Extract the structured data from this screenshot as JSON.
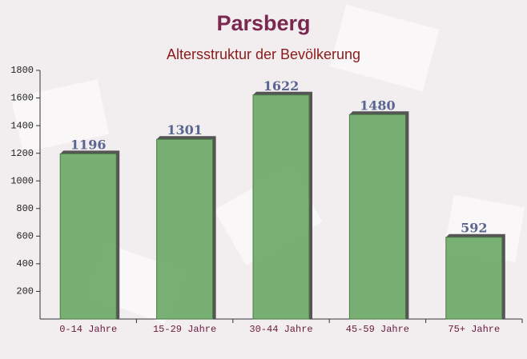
{
  "chart_data": {
    "type": "bar",
    "title": "Parsberg",
    "subtitle": "Altersstruktur der Bevölkerung",
    "categories": [
      "0-14 Jahre",
      "15-29 Jahre",
      "30-44 Jahre",
      "45-59 Jahre",
      "75+ Jahre"
    ],
    "values": [
      1196,
      1301,
      1622,
      1480,
      592
    ],
    "color": "#6aa866",
    "ylim": [
      0,
      1800
    ],
    "yticks": [
      200,
      400,
      600,
      800,
      1000,
      1200,
      1400,
      1600,
      1800
    ]
  }
}
